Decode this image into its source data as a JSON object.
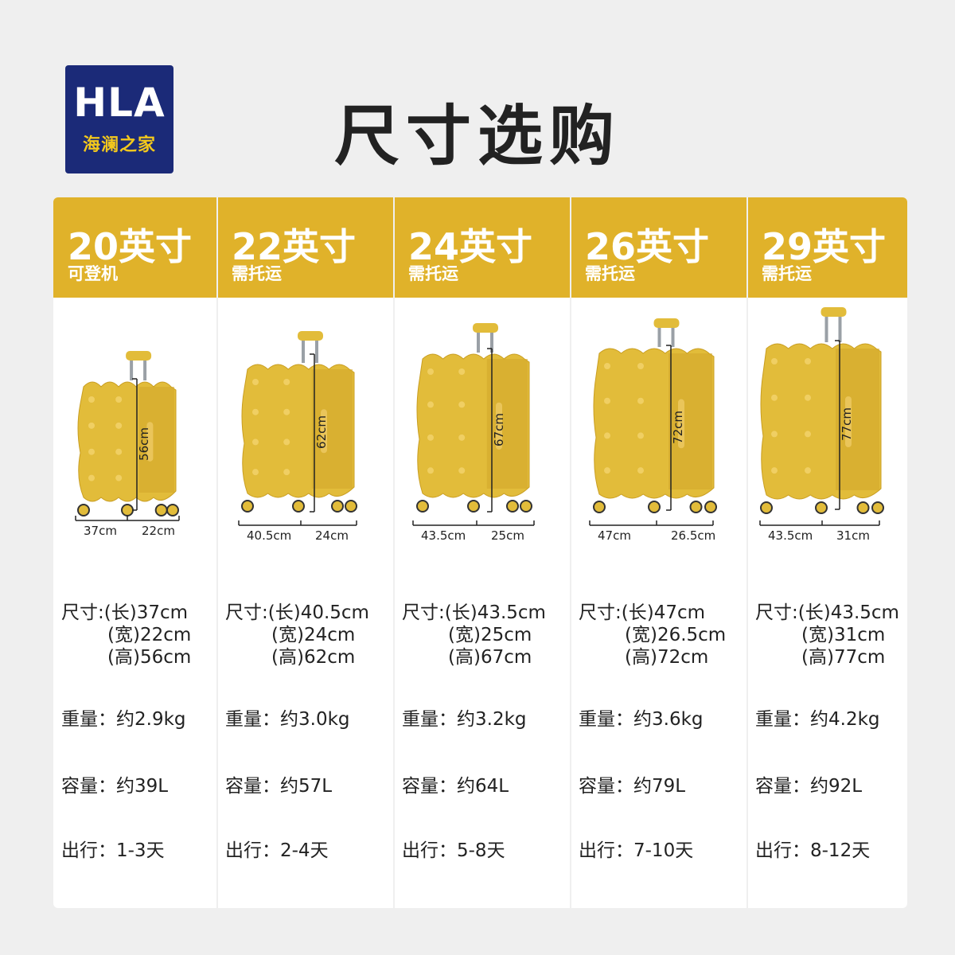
{
  "brand": {
    "name": "HLA",
    "sub": "海澜之家",
    "bg_color": "#1b2a78",
    "sub_color": "#f3c81c"
  },
  "title": "尺寸选购",
  "accent_color": "#e0b22a",
  "labels": {
    "size_prefix": "尺寸:",
    "length": "(长)",
    "width": "(宽)",
    "height": "(高)"
  },
  "columns": [
    {
      "size": "20英寸",
      "note": "可登机",
      "length": "37cm",
      "width": "22cm",
      "height": "56cm",
      "length_text": "(长)37cm",
      "width_text": "(宽)22cm",
      "height_text": "(高)56cm",
      "weight": "重量：约2.9kg",
      "capacity": "容量：约39L",
      "trip": "出行：1-3天"
    },
    {
      "size": "22英寸",
      "note": "需托运",
      "length": "40.5cm",
      "width": "24cm",
      "height": "62cm",
      "length_text": "(长)40.5cm",
      "width_text": "(宽)24cm",
      "height_text": "(高)62cm",
      "weight": "重量：约3.0kg",
      "capacity": "容量：约57L",
      "trip": "出行：2-4天"
    },
    {
      "size": "24英寸",
      "note": "需托运",
      "length": "43.5cm",
      "width": "25cm",
      "height": "67cm",
      "length_text": "(长)43.5cm",
      "width_text": "(宽)25cm",
      "height_text": "(高)67cm",
      "weight": "重量：约3.2kg",
      "capacity": "容量：约64L",
      "trip": "出行：5-8天"
    },
    {
      "size": "26英寸",
      "note": "需托运",
      "length": "47cm",
      "width": "26.5cm",
      "height": "72cm",
      "length_text": "(长)47cm",
      "width_text": "(宽)26.5cm",
      "height_text": "(高)72cm",
      "weight": "重量：约3.6kg",
      "capacity": "容量：约79L",
      "trip": "出行：7-10天"
    },
    {
      "size": "29英寸",
      "note": "需托运",
      "length": "43.5cm",
      "width": "31cm",
      "height": "77cm",
      "length_text": "(长)43.5cm",
      "width_text": "(宽)31cm",
      "height_text": "(高)77cm",
      "weight": "重量：约4.2kg",
      "capacity": "容量：约92L",
      "trip": "出行：8-12天"
    }
  ],
  "suitcase_color": "#e2bc3a",
  "icons": [
    "suitcase-icon"
  ]
}
